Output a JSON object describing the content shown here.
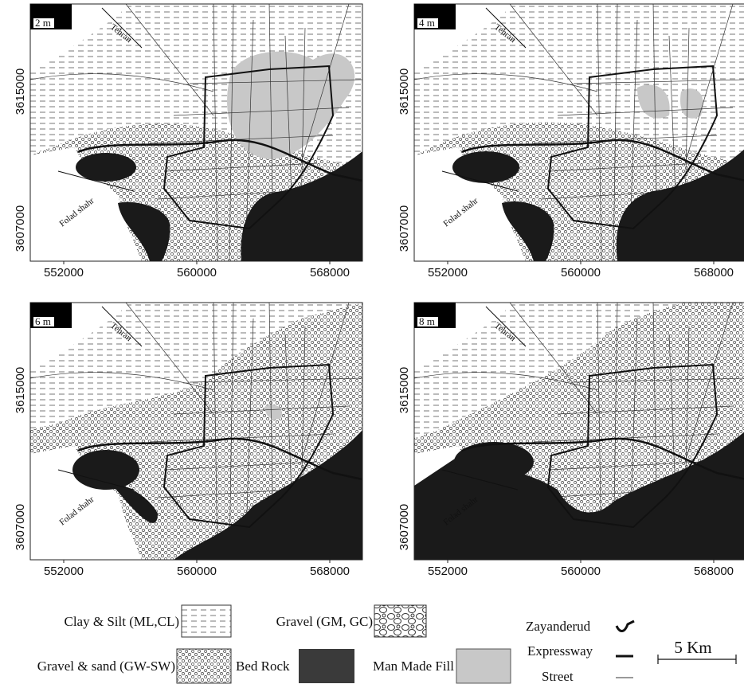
{
  "panels": [
    {
      "label": "2 m"
    },
    {
      "label": "4 m"
    },
    {
      "label": "6 m"
    },
    {
      "label": "8 m"
    }
  ],
  "x_ticks": [
    552000,
    560000,
    568000
  ],
  "y_ticks": [
    3615000,
    3607000
  ],
  "map_labels": {
    "tehran": "Tehran",
    "folad_shahr": "Folad shahr"
  },
  "legend": {
    "clay_silt": "Clay & Silt (ML,CL)",
    "gravel": "Gravel (GM, GC)",
    "gravel_sand": "Gravel & sand (GW-SW)",
    "bed_rock": "Bed Rock",
    "man_made_fill": "Man Made Fill",
    "zayanderud": "Zayanderud",
    "expressway": "Expressway",
    "street": "Street"
  },
  "scale_bar": "5 Km"
}
